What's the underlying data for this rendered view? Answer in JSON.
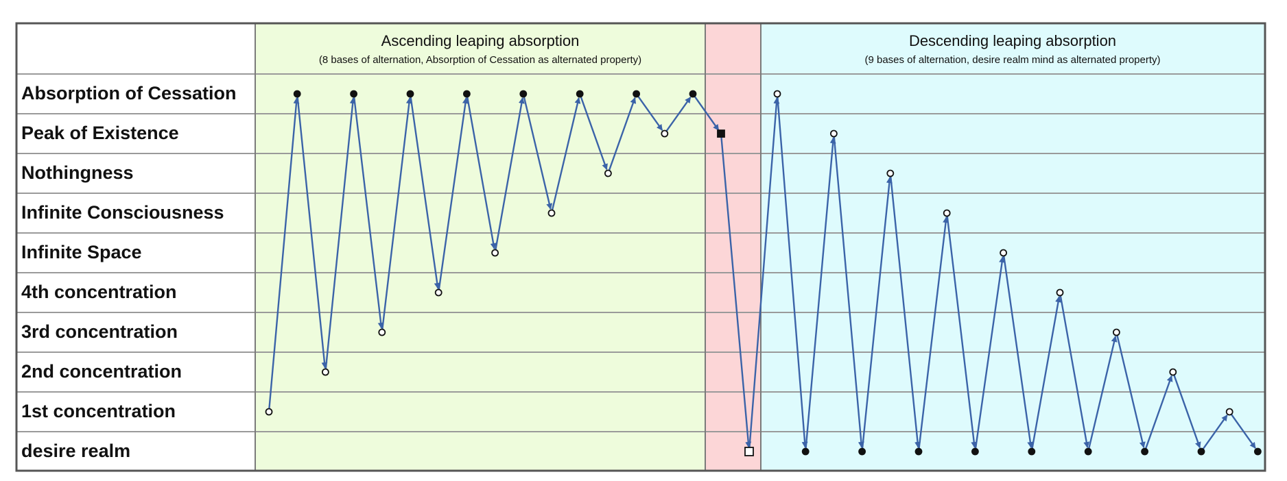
{
  "colors": {
    "ascending_bg": "#eefcdc",
    "middle_bg": "#fcd6d7",
    "descending_bg": "#defbfd",
    "grid": "#9a9a9a",
    "line": "#3b63a8",
    "marker": "#111111"
  },
  "rows": [
    "Absorption of Cessation",
    "Peak of Existence",
    "Nothingness",
    "Infinite Consciousness",
    "Infinite Space",
    "4th concentration",
    "3rd concentration",
    "2nd concentration",
    "1st concentration",
    "desire realm"
  ],
  "ascending": {
    "title": "Ascending leaping absorption",
    "subtitle": "(8 bases of alternation, Absorption of Cessation as alternated property)"
  },
  "descending": {
    "title": "Descending leaping absorption",
    "subtitle": "(9 bases of alternation, desire realm mind as alternated property)"
  },
  "path": {
    "note": "level = row index, 0 = Absorption of Cessation ... 9 = desire realm",
    "points": [
      {
        "step": 1,
        "level": 8,
        "marker": "open-circle"
      },
      {
        "step": 2,
        "level": 0,
        "marker": "filled-circle"
      },
      {
        "step": 3,
        "level": 7,
        "marker": "open-circle"
      },
      {
        "step": 4,
        "level": 0,
        "marker": "filled-circle"
      },
      {
        "step": 5,
        "level": 6,
        "marker": "open-circle"
      },
      {
        "step": 6,
        "level": 0,
        "marker": "filled-circle"
      },
      {
        "step": 7,
        "level": 5,
        "marker": "open-circle"
      },
      {
        "step": 8,
        "level": 0,
        "marker": "filled-circle"
      },
      {
        "step": 9,
        "level": 4,
        "marker": "open-circle"
      },
      {
        "step": 10,
        "level": 0,
        "marker": "filled-circle"
      },
      {
        "step": 11,
        "level": 3,
        "marker": "open-circle"
      },
      {
        "step": 12,
        "level": 0,
        "marker": "filled-circle"
      },
      {
        "step": 13,
        "level": 2,
        "marker": "open-circle"
      },
      {
        "step": 14,
        "level": 0,
        "marker": "filled-circle"
      },
      {
        "step": 15,
        "level": 1,
        "marker": "open-circle"
      },
      {
        "step": 16,
        "level": 0,
        "marker": "filled-circle"
      },
      {
        "step": 17,
        "level": 1,
        "marker": "filled-square"
      },
      {
        "step": 18,
        "level": 9,
        "marker": "open-square"
      },
      {
        "step": 19,
        "level": 0,
        "marker": "open-circle"
      },
      {
        "step": 20,
        "level": 9,
        "marker": "filled-circle"
      },
      {
        "step": 21,
        "level": 1,
        "marker": "open-circle"
      },
      {
        "step": 22,
        "level": 9,
        "marker": "filled-circle"
      },
      {
        "step": 23,
        "level": 2,
        "marker": "open-circle"
      },
      {
        "step": 24,
        "level": 9,
        "marker": "filled-circle"
      },
      {
        "step": 25,
        "level": 3,
        "marker": "open-circle"
      },
      {
        "step": 26,
        "level": 9,
        "marker": "filled-circle"
      },
      {
        "step": 27,
        "level": 4,
        "marker": "open-circle"
      },
      {
        "step": 28,
        "level": 9,
        "marker": "filled-circle"
      },
      {
        "step": 29,
        "level": 5,
        "marker": "open-circle"
      },
      {
        "step": 30,
        "level": 9,
        "marker": "filled-circle"
      },
      {
        "step": 31,
        "level": 6,
        "marker": "open-circle"
      },
      {
        "step": 32,
        "level": 9,
        "marker": "filled-circle"
      },
      {
        "step": 33,
        "level": 7,
        "marker": "open-circle"
      },
      {
        "step": 34,
        "level": 9,
        "marker": "filled-circle"
      },
      {
        "step": 35,
        "level": 8,
        "marker": "open-circle"
      },
      {
        "step": 36,
        "level": 9,
        "marker": "filled-circle"
      }
    ]
  }
}
